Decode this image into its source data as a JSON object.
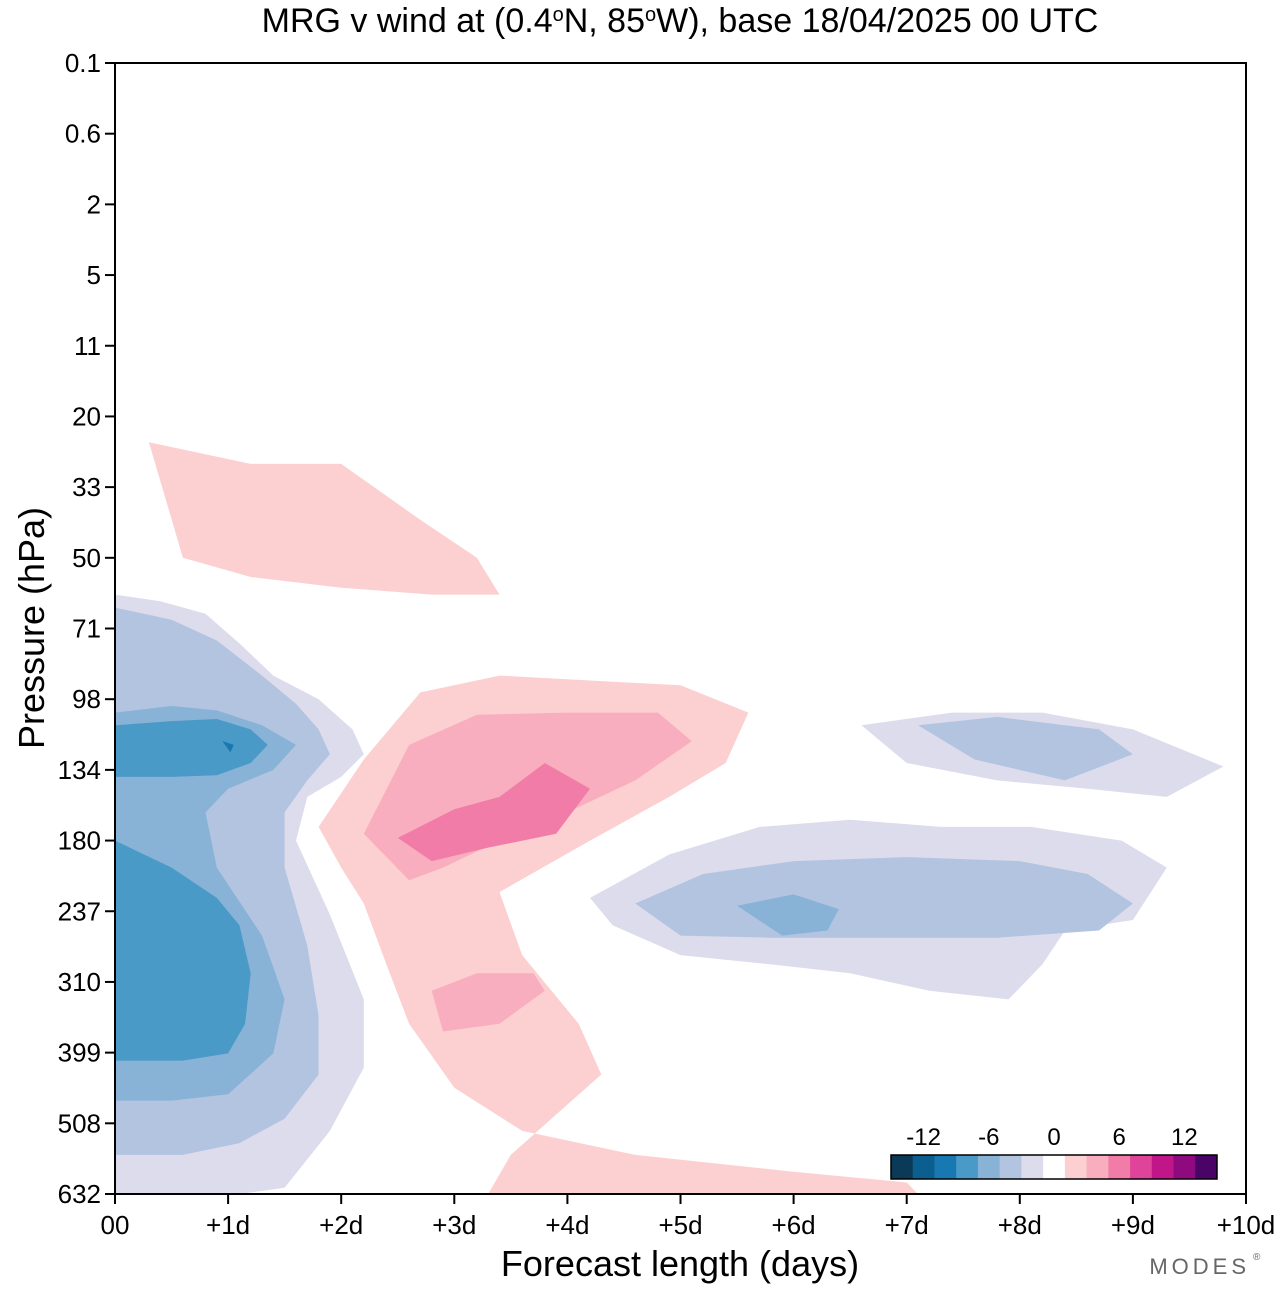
{
  "chart_data": {
    "type": "heatmap",
    "title": {
      "main": "MRG v wind at (0.4",
      "deg1": "o",
      "mid": "N, 85",
      "deg2": "o",
      "tail": "W),  base 18/04/2025  00 UTC"
    },
    "xlabel": "Forecast length (days)",
    "ylabel": "Pressure (hPa)",
    "x_ticks": [
      "00",
      "+1d",
      "+2d",
      "+3d",
      "+4d",
      "+5d",
      "+6d",
      "+7d",
      "+8d",
      "+9d",
      "+10d"
    ],
    "xlim": [
      0,
      10
    ],
    "y_ticks": [
      "0.1",
      "0.6",
      "2",
      "5",
      "11",
      "20",
      "33",
      "50",
      "71",
      "98",
      "134",
      "180",
      "237",
      "310",
      "399",
      "508",
      "632"
    ],
    "ylim": [
      0.1,
      632
    ],
    "legend": {
      "placement": "bottom-right",
      "labels": [
        "-12",
        "-6",
        "0",
        "6",
        "12"
      ],
      "colors": [
        "#0a3a57",
        "#0b5f8f",
        "#1878b2",
        "#4a9ac8",
        "#88b2d6",
        "#b3c4e0",
        "#dcdcec",
        "#ffffff",
        "#fcd0d0",
        "#f8aebe",
        "#f27ca8",
        "#e0449a",
        "#c0168a",
        "#8e0a7e",
        "#4a0468"
      ]
    },
    "regions": [
      {
        "level": "-2",
        "color": "#dcdcec",
        "x": [
          0.0,
          0.4,
          0.8,
          1.1,
          1.4,
          1.8,
          2.1,
          2.2,
          2.0,
          1.7,
          1.6,
          1.9,
          2.2,
          2.2,
          1.9,
          1.5,
          1.1,
          0.7,
          0.3,
          0.0
        ],
        "p": [
          60,
          62,
          66,
          76,
          88,
          98,
          112,
          125,
          138,
          150,
          180,
          240,
          330,
          420,
          520,
          620,
          632,
          632,
          632,
          632
        ]
      },
      {
        "level": "-4",
        "color": "#b3c4e0",
        "x": [
          0.0,
          0.5,
          0.9,
          1.3,
          1.6,
          1.8,
          1.9,
          1.7,
          1.5,
          1.5,
          1.7,
          1.8,
          1.8,
          1.5,
          1.1,
          0.6,
          0.0
        ],
        "p": [
          64,
          68,
          75,
          88,
          100,
          112,
          125,
          140,
          160,
          200,
          270,
          350,
          430,
          500,
          540,
          560,
          560
        ]
      },
      {
        "level": "-6",
        "color": "#88b2d6",
        "x": [
          0.0,
          0.5,
          0.9,
          1.3,
          1.6,
          1.4,
          1.0,
          0.8,
          0.9,
          1.3,
          1.5,
          1.4,
          1.0,
          0.5,
          0.0
        ],
        "p": [
          104,
          101,
          103,
          110,
          120,
          134,
          145,
          160,
          200,
          260,
          330,
          400,
          460,
          470,
          470
        ]
      },
      {
        "level": "-8",
        "color": "#4a9ac8",
        "x": [
          0.0,
          0.5,
          0.9,
          1.2,
          1.35,
          1.2,
          0.9,
          0.5,
          0.0
        ],
        "p": [
          110,
          108,
          107,
          112,
          120,
          130,
          137,
          138,
          138
        ]
      },
      {
        "level": "-8",
        "color": "#4a9ac8",
        "x": [
          0.0,
          0.5,
          0.9,
          1.1,
          1.2,
          1.15,
          1.0,
          0.6,
          0.0
        ],
        "p": [
          180,
          200,
          225,
          250,
          300,
          360,
          400,
          410,
          410
        ]
      },
      {
        "level": "-10",
        "color": "#1878b2",
        "x": [
          0.95,
          1.05,
          1.02,
          0.95
        ],
        "p": [
          118,
          120,
          124,
          118
        ]
      },
      {
        "level": "-2",
        "color": "#dcdcec",
        "x": [
          4.2,
          4.9,
          5.7,
          6.5,
          7.3,
          8.1,
          8.9,
          9.3,
          9.0,
          8.4,
          8.2,
          7.9,
          7.2,
          6.5,
          5.8,
          5.0,
          4.4,
          4.2
        ],
        "p": [
          225,
          190,
          170,
          165,
          170,
          170,
          180,
          200,
          245,
          255,
          290,
          330,
          320,
          300,
          290,
          280,
          250,
          225
        ]
      },
      {
        "level": "-4",
        "color": "#b3c4e0",
        "x": [
          4.6,
          5.2,
          6.0,
          7.0,
          8.0,
          8.6,
          9.0,
          8.7,
          7.8,
          6.8,
          5.8,
          5.0,
          4.6
        ],
        "p": [
          230,
          205,
          195,
          192,
          195,
          205,
          230,
          255,
          262,
          262,
          262,
          260,
          230
        ]
      },
      {
        "level": "-6",
        "color": "#88b2d6",
        "x": [
          5.5,
          6.0,
          6.4,
          6.3,
          5.9,
          5.5
        ],
        "p": [
          232,
          222,
          235,
          255,
          260,
          232
        ]
      },
      {
        "level": "-2",
        "color": "#dcdcec",
        "x": [
          6.6,
          7.4,
          8.2,
          9.0,
          9.8,
          9.3,
          8.6,
          7.8,
          7.0,
          6.6
        ],
        "p": [
          110,
          104,
          104,
          112,
          132,
          150,
          145,
          140,
          130,
          110
        ]
      },
      {
        "level": "-4",
        "color": "#b3c4e0",
        "x": [
          7.1,
          7.8,
          8.7,
          9.0,
          8.4,
          7.6,
          7.1
        ],
        "p": [
          110,
          106,
          112,
          125,
          140,
          128,
          110
        ]
      },
      {
        "level": "2",
        "color": "#fcd0d0",
        "x": [
          1.8,
          2.2,
          2.7,
          3.4,
          4.2,
          5.0,
          5.6,
          5.4,
          4.9,
          4.2,
          3.4,
          3.6,
          4.1,
          4.3,
          3.8,
          3.5,
          3.3,
          3.7,
          4.8,
          6.1,
          7.1,
          7.0,
          6.0,
          4.6,
          3.6,
          3.0,
          2.6,
          2.4,
          2.2,
          2.0,
          1.8
        ],
        "p": [
          170,
          128,
          95,
          88,
          90,
          92,
          104,
          130,
          150,
          180,
          220,
          280,
          360,
          430,
          510,
          560,
          632,
          632,
          632,
          632,
          632,
          610,
          590,
          560,
          520,
          450,
          360,
          290,
          230,
          200,
          170
        ]
      },
      {
        "level": "4",
        "color": "#f8aebe",
        "x": [
          2.2,
          2.6,
          3.2,
          4.0,
          4.8,
          5.1,
          4.6,
          4.0,
          3.4,
          2.9,
          2.6,
          2.2
        ],
        "p": [
          175,
          120,
          105,
          104,
          104,
          118,
          140,
          160,
          180,
          200,
          210,
          175
        ]
      },
      {
        "level": "6",
        "color": "#f27ca8",
        "x": [
          2.5,
          3.0,
          3.4,
          3.8,
          4.2,
          3.9,
          3.3,
          2.8,
          2.5
        ],
        "p": [
          178,
          158,
          150,
          130,
          145,
          175,
          185,
          195,
          178
        ]
      },
      {
        "level": "4",
        "color": "#f8aebe",
        "x": [
          2.8,
          3.2,
          3.7,
          3.8,
          3.4,
          2.9,
          2.8
        ],
        "p": [
          320,
          300,
          300,
          320,
          360,
          370,
          320
        ]
      },
      {
        "level": "2",
        "color": "#fcd0d0",
        "x": [
          0.3,
          1.2,
          2.0,
          2.7,
          3.2,
          3.4,
          2.8,
          2.0,
          1.2,
          0.6,
          0.3
        ],
        "p": [
          24,
          28,
          28,
          40,
          50,
          60,
          60,
          58,
          55,
          50,
          24
        ]
      }
    ]
  }
}
